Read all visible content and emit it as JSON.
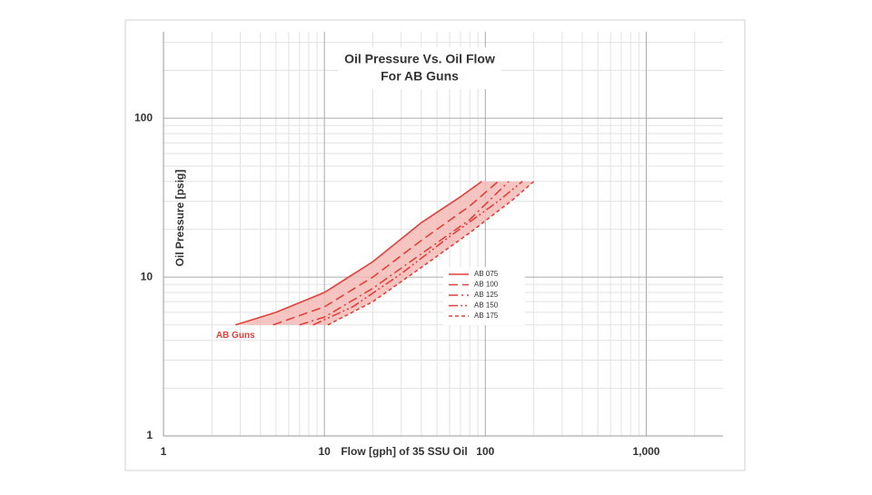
{
  "chart_data": {
    "type": "line",
    "title": "Oil Pressure Vs. Oil Flow",
    "subtitle": "For AB Guns",
    "x_label": "Flow [gph] of 35 SSU Oil",
    "y_label": "Oil Pressure [psig]",
    "xscale": "log",
    "yscale": "log",
    "xlim": [
      1,
      3000
    ],
    "ylim": [
      1,
      350
    ],
    "xticks": [
      1,
      10,
      100,
      {
        "value": 1000,
        "label": "1,000"
      }
    ],
    "yticks": [
      1,
      10,
      100
    ],
    "grid": true,
    "minor_grid": true,
    "fill_between": true,
    "fill_color": "#f4b6b3",
    "legend": "center",
    "annotation": {
      "text": "AB Guns",
      "x": 2.8,
      "y": 4.3,
      "color": "#e0413a"
    },
    "series": [
      {
        "name": "AB 075",
        "color": "#e0413a",
        "dash": "",
        "x": [
          2.8,
          5,
          10,
          20,
          40,
          70,
          95
        ],
        "y": [
          5,
          6,
          8,
          12.5,
          22,
          32,
          40
        ]
      },
      {
        "name": "AB 100",
        "color": "#e0413a",
        "dash": "10 5",
        "x": [
          4.8,
          10,
          20,
          40,
          80,
          120
        ],
        "y": [
          5,
          6.5,
          10,
          17,
          28,
          40
        ]
      },
      {
        "name": "AB 125",
        "color": "#e0413a",
        "dash": "10 4 2 4",
        "x": [
          7,
          10,
          20,
          40,
          80,
          140
        ],
        "y": [
          5,
          5.6,
          8.5,
          14,
          23,
          40
        ]
      },
      {
        "name": "AB 150",
        "color": "#e0413a",
        "dash": "10 3 2 3 2 3",
        "x": [
          8.5,
          15,
          30,
          60,
          120,
          170
        ],
        "y": [
          5,
          6.5,
          10.5,
          18,
          30,
          40
        ]
      },
      {
        "name": "AB 175",
        "color": "#e0413a",
        "dash": "4 3",
        "x": [
          10.5,
          20,
          40,
          80,
          150,
          200
        ],
        "y": [
          5,
          7,
          11.5,
          19,
          31,
          40
        ]
      }
    ]
  }
}
